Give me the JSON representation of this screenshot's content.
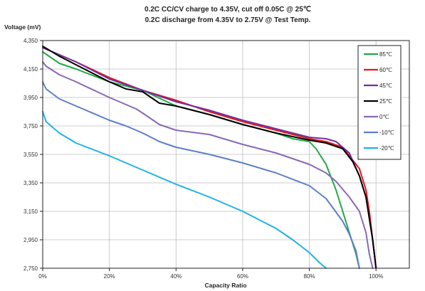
{
  "chart_data": {
    "type": "line",
    "title": "0.2C CC/CV charge to 4.35V, cut off 0.05C @ 25℃",
    "subtitle": "0.2C discharge from 4.35V to 2.75V @ Test Temp.",
    "xlabel": "Capacity Ratio",
    "ylabel": "Voltage (mV)",
    "xlim": [
      0,
      110
    ],
    "ylim": [
      2750,
      4350
    ],
    "x_ticks": [
      0,
      20,
      40,
      60,
      80,
      100
    ],
    "x_tick_labels": [
      "0%",
      "20%",
      "40%",
      "60%",
      "80%",
      "100%"
    ],
    "y_ticks": [
      2750,
      2950,
      3150,
      3350,
      3550,
      3750,
      3950,
      4150,
      4350
    ],
    "y_tick_labels": [
      "2,750",
      "2,950",
      "3,150",
      "3,350",
      "3,550",
      "3,750",
      "3,950",
      "4,150",
      "4,350"
    ],
    "grid": true,
    "legend_position": "top-right",
    "series": [
      {
        "name": "85℃",
        "color": "#22a845",
        "x": [
          0,
          5,
          10,
          20,
          30,
          40,
          50,
          60,
          70,
          75,
          80,
          82,
          85,
          88,
          90,
          92,
          94,
          95
        ],
        "y": [
          4270,
          4190,
          4150,
          4060,
          4000,
          3890,
          3830,
          3760,
          3700,
          3660,
          3640,
          3590,
          3480,
          3300,
          3150,
          3000,
          2850,
          2750
        ]
      },
      {
        "name": "60℃",
        "color": "#e8141c",
        "x": [
          0,
          10,
          20,
          30,
          40,
          50,
          60,
          70,
          80,
          85,
          90,
          95,
          97,
          98,
          99,
          100
        ],
        "y": [
          4300,
          4200,
          4090,
          4000,
          3930,
          3850,
          3780,
          3720,
          3660,
          3640,
          3600,
          3450,
          3300,
          3150,
          2950,
          2750
        ]
      },
      {
        "name": "45℃",
        "color": "#7030a0",
        "x": [
          0,
          10,
          20,
          30,
          40,
          50,
          60,
          70,
          80,
          85,
          88,
          92,
          95,
          97,
          98,
          99,
          100
        ],
        "y": [
          4300,
          4200,
          4080,
          4000,
          3920,
          3860,
          3790,
          3730,
          3670,
          3660,
          3640,
          3560,
          3400,
          3250,
          3100,
          2950,
          2750
        ]
      },
      {
        "name": "25℃",
        "color": "#000000",
        "x": [
          0,
          5,
          10,
          20,
          25,
          30,
          35,
          40,
          50,
          60,
          70,
          80,
          85,
          90,
          93,
          95,
          97,
          98,
          99,
          100
        ],
        "y": [
          4310,
          4240,
          4180,
          4060,
          4010,
          3990,
          3910,
          3890,
          3830,
          3760,
          3700,
          3650,
          3630,
          3590,
          3500,
          3400,
          3250,
          3100,
          2950,
          2750
        ]
      },
      {
        "name": "0℃",
        "color": "#8868b8",
        "x": [
          0,
          1,
          5,
          10,
          20,
          28,
          30,
          35,
          40,
          50,
          60,
          70,
          80,
          85,
          88,
          92,
          95,
          97,
          98,
          99
        ],
        "y": [
          4200,
          4170,
          4110,
          4060,
          3950,
          3870,
          3840,
          3760,
          3720,
          3690,
          3620,
          3560,
          3480,
          3420,
          3360,
          3250,
          3150,
          3000,
          2850,
          2750
        ]
      },
      {
        "name": "-10℃",
        "color": "#5b7fc8",
        "x": [
          0,
          1,
          5,
          10,
          20,
          25,
          30,
          35,
          40,
          50,
          60,
          70,
          80,
          85,
          90,
          92,
          94,
          95
        ],
        "y": [
          4060,
          4010,
          3940,
          3890,
          3790,
          3750,
          3700,
          3640,
          3600,
          3550,
          3490,
          3420,
          3330,
          3240,
          3080,
          2990,
          2870,
          2750
        ]
      },
      {
        "name": "-20℃",
        "color": "#1fb2e8",
        "x": [
          0,
          1,
          5,
          10,
          20,
          30,
          40,
          50,
          60,
          70,
          75,
          80,
          83,
          85
        ],
        "y": [
          3850,
          3780,
          3700,
          3630,
          3540,
          3440,
          3340,
          3250,
          3150,
          3030,
          2950,
          2860,
          2790,
          2750
        ]
      }
    ]
  }
}
